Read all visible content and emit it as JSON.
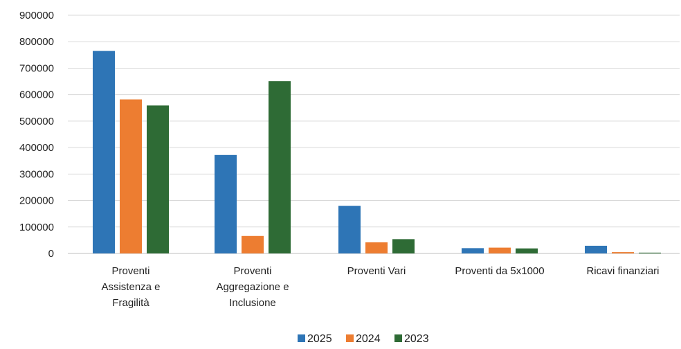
{
  "chart_data": {
    "type": "bar",
    "categories": [
      [
        "Proventi",
        "Assistenza e",
        "Fragilità"
      ],
      [
        "Proventi",
        "Aggregazione e",
        "Inclusione"
      ],
      [
        "Proventi Vari"
      ],
      [
        "Proventi da 5x1000"
      ],
      [
        "Ricavi finanziari"
      ]
    ],
    "series": [
      {
        "name": "2025",
        "color": "#2E75B6",
        "values": [
          765000,
          372000,
          180000,
          20000,
          29000
        ]
      },
      {
        "name": "2024",
        "color": "#ED7D31",
        "values": [
          582000,
          66000,
          42000,
          22000,
          5000
        ]
      },
      {
        "name": "2023",
        "color": "#2E6B35",
        "values": [
          559000,
          651000,
          54000,
          19000,
          3000
        ]
      }
    ],
    "ylim": [
      0,
      900000
    ],
    "yticks": [
      "900000",
      "800000",
      "700000",
      "600000",
      "500000",
      "400000",
      "300000",
      "200000",
      "100000",
      "0"
    ],
    "grid": true,
    "legend_position": "bottom"
  }
}
